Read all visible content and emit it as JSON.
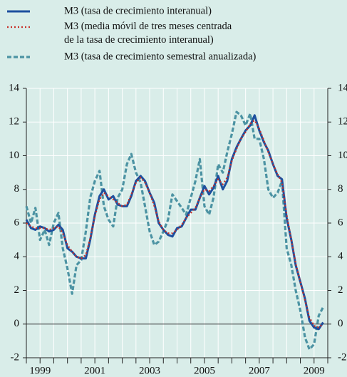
{
  "chart_data": {
    "type": "line",
    "x": [
      1999.0,
      1999.17,
      1999.33,
      1999.5,
      1999.67,
      1999.83,
      2000.0,
      2000.17,
      2000.33,
      2000.5,
      2000.67,
      2000.83,
      2001.0,
      2001.17,
      2001.33,
      2001.5,
      2001.67,
      2001.83,
      2002.0,
      2002.17,
      2002.33,
      2002.5,
      2002.67,
      2002.83,
      2003.0,
      2003.17,
      2003.33,
      2003.5,
      2003.67,
      2003.83,
      2004.0,
      2004.17,
      2004.33,
      2004.5,
      2004.67,
      2004.83,
      2005.0,
      2005.17,
      2005.33,
      2005.5,
      2005.67,
      2005.83,
      2006.0,
      2006.17,
      2006.33,
      2006.5,
      2006.67,
      2006.83,
      2007.0,
      2007.17,
      2007.33,
      2007.5,
      2007.67,
      2007.83,
      2008.0,
      2008.17,
      2008.33,
      2008.5,
      2008.67,
      2008.83,
      2009.0,
      2009.17,
      2009.33,
      2009.5,
      2009.67,
      2009.83
    ],
    "series": [
      {
        "name": "M3 (tasa de crecimiento interanual)",
        "color": "#1d4f9e",
        "style": "solid",
        "values": [
          6.2,
          5.7,
          5.6,
          5.8,
          5.7,
          5.5,
          5.6,
          5.9,
          5.6,
          4.5,
          4.3,
          4.0,
          3.9,
          3.9,
          5.0,
          6.5,
          7.6,
          8.0,
          7.4,
          7.6,
          7.1,
          7.0,
          7.0,
          7.6,
          8.5,
          8.8,
          8.5,
          7.8,
          7.2,
          6.0,
          5.6,
          5.3,
          5.2,
          5.7,
          5.8,
          6.3,
          6.8,
          6.8,
          7.5,
          8.2,
          7.7,
          8.1,
          8.8,
          8.0,
          8.5,
          9.8,
          10.5,
          11.0,
          11.5,
          11.8,
          12.4,
          11.5,
          10.8,
          10.3,
          9.5,
          8.8,
          8.6,
          6.3,
          5.0,
          3.5,
          2.5,
          1.5,
          0.2,
          -0.2,
          -0.3,
          0.1
        ]
      },
      {
        "name": "M3 (media móvil de tres meses centrada\nde la tasa de crecimiento interanual)",
        "color": "#c8312a",
        "style": "dotted",
        "values": [
          6.0,
          5.8,
          5.7,
          5.7,
          5.7,
          5.6,
          5.7,
          5.8,
          5.4,
          4.7,
          4.3,
          4.0,
          3.9,
          4.1,
          5.1,
          6.4,
          7.4,
          7.8,
          7.6,
          7.4,
          7.2,
          7.0,
          7.1,
          7.7,
          8.4,
          8.7,
          8.4,
          7.8,
          7.0,
          6.1,
          5.6,
          5.4,
          5.4,
          5.6,
          5.9,
          6.3,
          6.6,
          6.9,
          7.5,
          8.0,
          7.9,
          8.2,
          8.6,
          8.3,
          8.7,
          9.7,
          10.4,
          11.0,
          11.4,
          11.9,
          12.1,
          11.6,
          10.9,
          10.2,
          9.5,
          8.9,
          8.4,
          6.5,
          5.0,
          3.6,
          2.5,
          1.4,
          0.4,
          -0.1,
          -0.2,
          0.0
        ]
      },
      {
        "name": "M3 (tasa de crecimiento semestral anualizada)",
        "color": "#4c93a3",
        "style": "dashed",
        "values": [
          7.0,
          6.0,
          6.9,
          5.0,
          5.6,
          4.7,
          6.0,
          6.6,
          4.5,
          3.3,
          1.8,
          3.5,
          3.8,
          5.5,
          7.5,
          8.5,
          9.1,
          7.0,
          6.2,
          5.8,
          7.5,
          8.0,
          9.5,
          10.1,
          9.0,
          8.4,
          7.0,
          5.5,
          4.7,
          4.9,
          5.5,
          6.2,
          7.7,
          7.3,
          6.9,
          6.5,
          7.5,
          8.5,
          9.8,
          7.0,
          6.5,
          7.5,
          9.5,
          9.0,
          10.2,
          11.3,
          12.6,
          12.4,
          11.8,
          12.5,
          11.0,
          11.0,
          9.8,
          8.0,
          7.5,
          7.8,
          8.5,
          4.5,
          3.5,
          2.0,
          0.8,
          -0.8,
          -1.5,
          -1.2,
          0.5,
          1.0
        ]
      }
    ],
    "xlim": [
      1999.0,
      2010.0
    ],
    "xticks": [
      {
        "value": 1999.5,
        "label": "1999"
      },
      {
        "value": 2001.5,
        "label": "2001"
      },
      {
        "value": 2003.5,
        "label": "2003"
      },
      {
        "value": 2005.5,
        "label": "2005"
      },
      {
        "value": 2007.5,
        "label": "2007"
      },
      {
        "value": 2009.5,
        "label": "2009"
      }
    ],
    "xminor_ticks": [
      1999.0,
      1999.5,
      2000.0,
      2000.5,
      2001.0,
      2001.5,
      2002.0,
      2002.5,
      2003.0,
      2003.5,
      2004.0,
      2004.5,
      2005.0,
      2005.5,
      2006.0,
      2006.5,
      2007.0,
      2007.5,
      2008.0,
      2008.5,
      2009.0,
      2009.5,
      2010.0
    ],
    "ylim": [
      -2,
      14
    ],
    "yticks": [
      -2,
      0,
      2,
      4,
      6,
      8,
      10,
      12,
      14
    ],
    "y2lim": [
      -2,
      14
    ],
    "y2ticks": [
      -2,
      0,
      2,
      4,
      6,
      8,
      10,
      12,
      14
    ],
    "grid": true
  }
}
